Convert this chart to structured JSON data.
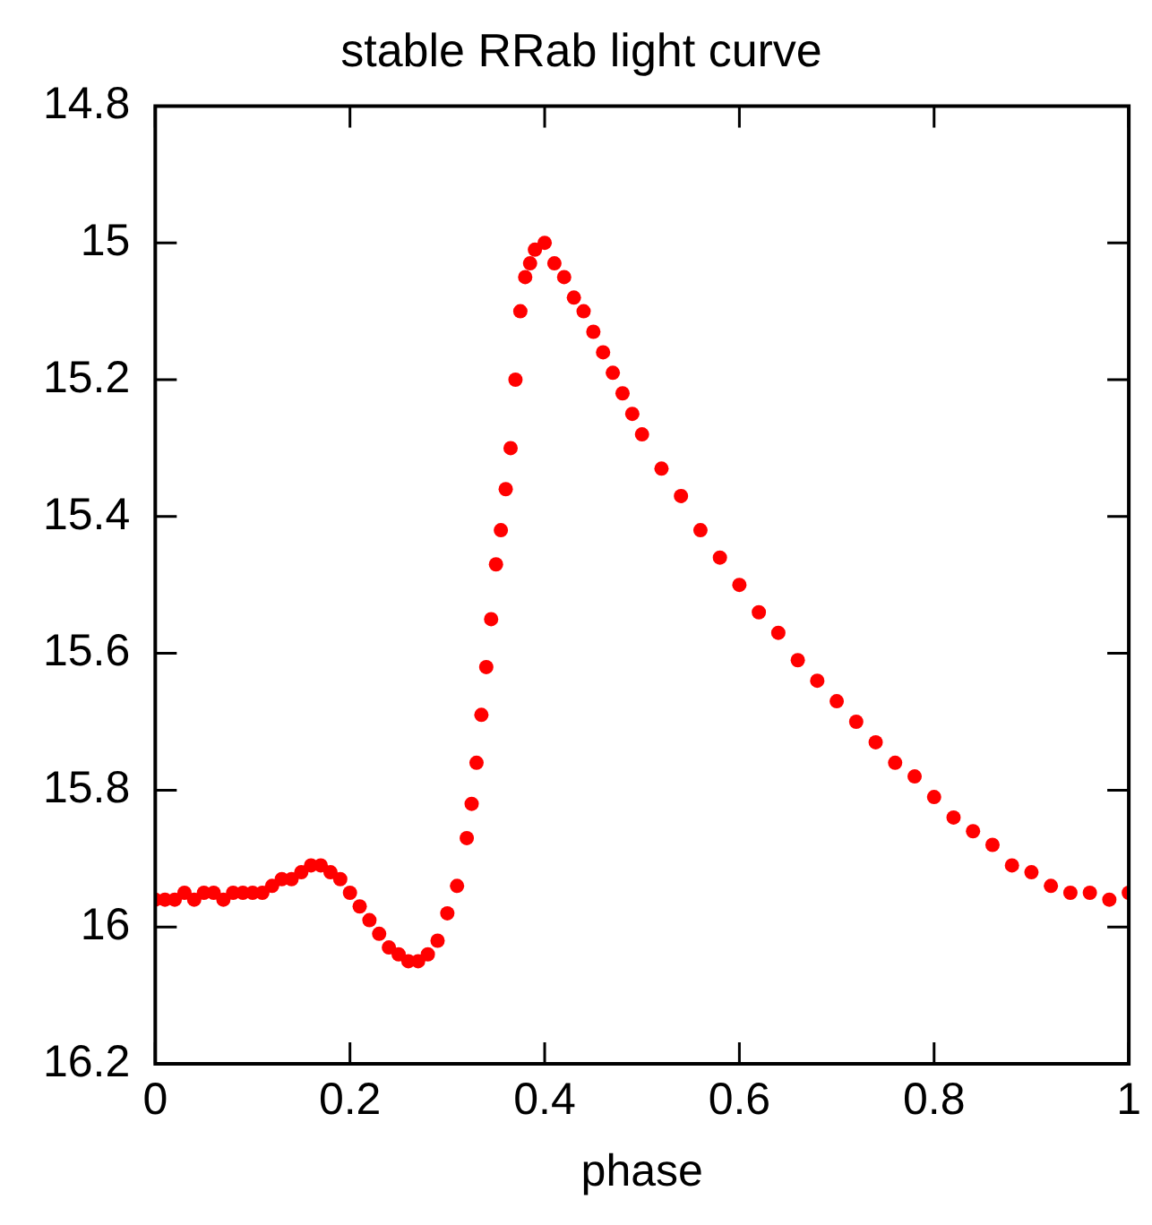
{
  "chart_data": {
    "type": "scatter",
    "title": "stable RRab light curve",
    "xlabel": "phase",
    "x": [
      0,
      0.01,
      0.02,
      0.03,
      0.04,
      0.05,
      0.06,
      0.07,
      0.08,
      0.09,
      0.1,
      0.11,
      0.12,
      0.13,
      0.14,
      0.15,
      0.16,
      0.17,
      0.18,
      0.19,
      0.2,
      0.21,
      0.22,
      0.23,
      0.24,
      0.25,
      0.26,
      0.27,
      0.28,
      0.29,
      0.3,
      0.31,
      0.32,
      0.325,
      0.33,
      0.335,
      0.34,
      0.345,
      0.35,
      0.355,
      0.36,
      0.365,
      0.37,
      0.375,
      0.38,
      0.385,
      0.39,
      0.4,
      0.41,
      0.42,
      0.43,
      0.44,
      0.45,
      0.46,
      0.47,
      0.48,
      0.49,
      0.5,
      0.52,
      0.54,
      0.56,
      0.58,
      0.6,
      0.62,
      0.64,
      0.66,
      0.68,
      0.7,
      0.72,
      0.74,
      0.76,
      0.78,
      0.8,
      0.82,
      0.84,
      0.86,
      0.88,
      0.9,
      0.92,
      0.94,
      0.96,
      0.98,
      1
    ],
    "series": [
      {
        "color": "#ff0000",
        "values": [
          15.96,
          15.96,
          15.96,
          15.95,
          15.96,
          15.95,
          15.95,
          15.96,
          15.95,
          15.95,
          15.95,
          15.95,
          15.94,
          15.93,
          15.93,
          15.92,
          15.91,
          15.91,
          15.92,
          15.93,
          15.95,
          15.97,
          15.99,
          16.01,
          16.03,
          16.04,
          16.05,
          16.05,
          16.04,
          16.02,
          15.98,
          15.94,
          15.87,
          15.82,
          15.76,
          15.69,
          15.62,
          15.55,
          15.47,
          15.42,
          15.36,
          15.3,
          15.2,
          15.1,
          15.05,
          15.03,
          15.01,
          15.0,
          15.03,
          15.05,
          15.08,
          15.1,
          15.13,
          15.16,
          15.19,
          15.22,
          15.25,
          15.28,
          15.33,
          15.37,
          15.42,
          15.46,
          15.5,
          15.54,
          15.57,
          15.61,
          15.64,
          15.67,
          15.7,
          15.73,
          15.76,
          15.78,
          15.81,
          15.84,
          15.86,
          15.88,
          15.91,
          15.92,
          15.94,
          15.95,
          15.95,
          15.96,
          15.95
        ]
      }
    ],
    "xlim": [
      0,
      1
    ],
    "xticks": [
      0,
      0.2,
      0.4,
      0.6,
      0.8,
      1
    ],
    "ylim": [
      16.2,
      14.8
    ],
    "yticks": [
      14.8,
      15,
      15.2,
      15.4,
      15.6,
      15.8,
      16,
      16.2
    ],
    "grid": false,
    "legend": false,
    "marker": "circle"
  }
}
